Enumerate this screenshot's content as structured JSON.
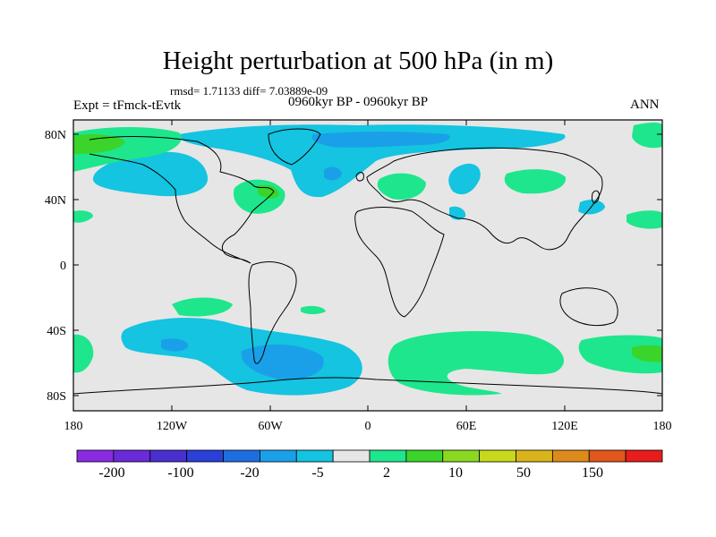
{
  "title": "Height perturbation at 500 hPa (in m)",
  "stats": "rmsd= 1.71133 diff= 7.03889e-09",
  "experiment": "Expt = tFmck-tEvtk",
  "period": "0960kyr BP - 0960kyr BP",
  "season": "ANN",
  "lat_labels": [
    "80N",
    "40N",
    "0",
    "40S",
    "80S"
  ],
  "lon_labels": [
    "180",
    "120W",
    "60W",
    "0",
    "60E",
    "120E",
    "180"
  ],
  "colorbar": {
    "labels": [
      "-200",
      "-100",
      "-20",
      "-5",
      "2",
      "10",
      "50",
      "150"
    ],
    "colors": [
      "#8a2be2",
      "#6a2ad8",
      "#4a2fd0",
      "#2a40d8",
      "#1e6ee0",
      "#1aa0e8",
      "#14c4e0",
      "#e6e6e6",
      "#1ee68c",
      "#3ad42a",
      "#8ad820",
      "#c8d81a",
      "#d8b41a",
      "#dc8a1a",
      "#e0561c",
      "#e81c1c"
    ]
  },
  "colors": {
    "ocean_background": "#e6e6e6",
    "negative_light": "#14c4e0",
    "negative_mid": "#1aa0e8",
    "positive_light": "#1ee68c",
    "positive_mid": "#3ad42a"
  }
}
